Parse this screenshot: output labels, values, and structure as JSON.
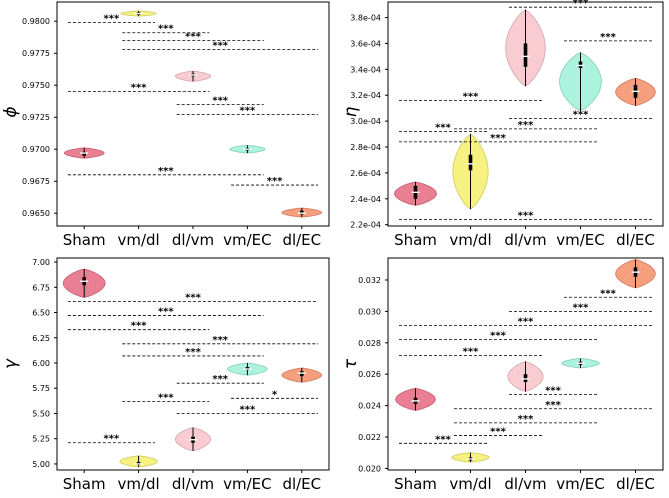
{
  "chart_data": [
    {
      "type": "violin",
      "ylabel": "ϕ",
      "ylim": [
        0.964,
        0.9815
      ],
      "yticks": [
        0.965,
        0.9675,
        0.97,
        0.9725,
        0.975,
        0.9775,
        0.98
      ],
      "ytick_labels": [
        "0.9650",
        "0.9675",
        "0.9700",
        "0.9725",
        "0.9750",
        "0.9775",
        "0.9800"
      ],
      "categories": [
        "Sham",
        "vm/dl",
        "dl/vm",
        "vm/EC",
        "dl/EC"
      ],
      "colors": [
        "#e8788c",
        "#f5f07a",
        "#f9c9cf",
        "#a8f2dc",
        "#f49a78"
      ],
      "violins": [
        {
          "lo": 0.9693,
          "hi": 0.9701,
          "q1": 0.9695,
          "q3": 0.9698,
          "median": 0.9697,
          "w": 0.9
        },
        {
          "lo": 0.9804,
          "hi": 0.9808,
          "q1": 0.9805,
          "q3": 0.9807,
          "median": 0.9806,
          "w": 0.8
        },
        {
          "lo": 0.9753,
          "hi": 0.9761,
          "q1": 0.9757,
          "q3": 0.9759,
          "median": 0.9758,
          "w": 0.8
        },
        {
          "lo": 0.9697,
          "hi": 0.9703,
          "q1": 0.9699,
          "q3": 0.9701,
          "median": 0.97,
          "w": 0.8
        },
        {
          "lo": 0.9647,
          "hi": 0.9654,
          "q1": 0.9649,
          "q3": 0.9652,
          "median": 0.965,
          "w": 0.9
        }
      ],
      "brackets": [
        {
          "from": 0,
          "to": 1,
          "y": 0.9799,
          "label": "***"
        },
        {
          "from": 1,
          "to": 2,
          "y": 0.9791,
          "label": "***"
        },
        {
          "from": 1,
          "to": 3,
          "y": 0.9785,
          "label": "***"
        },
        {
          "from": 1,
          "to": 4,
          "y": 0.9778,
          "label": "***"
        },
        {
          "from": 0,
          "to": 2,
          "y": 0.9745,
          "label": "***"
        },
        {
          "from": 2,
          "to": 3,
          "y": 0.9735,
          "label": "***"
        },
        {
          "from": 2,
          "to": 4,
          "y": 0.9727,
          "label": "***"
        },
        {
          "from": 0,
          "to": 3,
          "y": 0.968,
          "label": "***"
        },
        {
          "from": 3,
          "to": 4,
          "y": 0.9672,
          "label": "***"
        }
      ]
    },
    {
      "type": "violin",
      "ylabel": "η",
      "ylim": [
        0.000219,
        0.000392
      ],
      "yticks": [
        0.00022,
        0.00024,
        0.00026,
        0.00028,
        0.0003,
        0.00032,
        0.00034,
        0.00036,
        0.00038
      ],
      "ytick_labels": [
        "2.2e-04",
        "2.4e-04",
        "2.6e-04",
        "2.8e-04",
        "3.0e-04",
        "3.2e-04",
        "3.4e-04",
        "3.6e-04",
        "3.8e-04"
      ],
      "categories": [
        "Sham",
        "vm/dl",
        "dl/vm",
        "vm/EC",
        "dl/EC"
      ],
      "colors": [
        "#e8788c",
        "#f5f07a",
        "#f9c9cf",
        "#a8f2dc",
        "#f49a78"
      ],
      "violins": [
        {
          "lo": 0.000235,
          "hi": 0.000253,
          "q1": 0.00024,
          "q3": 0.00025,
          "median": 0.000245,
          "w": 0.95
        },
        {
          "lo": 0.000232,
          "hi": 0.00029,
          "q1": 0.000262,
          "q3": 0.000274,
          "median": 0.000267,
          "w": 0.8
        },
        {
          "lo": 0.000327,
          "hi": 0.000386,
          "q1": 0.000342,
          "q3": 0.00036,
          "median": 0.00035,
          "w": 0.9
        },
        {
          "lo": 0.000308,
          "hi": 0.000353,
          "q1": 0.000341,
          "q3": 0.000346,
          "median": 0.000343,
          "w": 0.95
        },
        {
          "lo": 0.000312,
          "hi": 0.000333,
          "q1": 0.000318,
          "q3": 0.000328,
          "median": 0.000323,
          "w": 0.9
        }
      ],
      "brackets": [
        {
          "from": 2,
          "to": 4,
          "y": 0.000388,
          "label": "***"
        },
        {
          "from": 3,
          "to": 4,
          "y": 0.000362,
          "label": "***"
        },
        {
          "from": 0,
          "to": 2,
          "y": 0.000316,
          "label": "***"
        },
        {
          "from": 2,
          "to": 4,
          "y": 0.000302,
          "label": "***"
        },
        {
          "from": 1,
          "to": 3,
          "y": 0.000294,
          "label": "***"
        },
        {
          "from": 0,
          "to": 1,
          "y": 0.000292,
          "label": "***"
        },
        {
          "from": 0,
          "to": 3,
          "y": 0.000284,
          "label": "***"
        },
        {
          "from": 0,
          "to": 4,
          "y": 0.000224,
          "label": "***"
        }
      ]
    },
    {
      "type": "violin",
      "ylabel": "γ",
      "ylim": [
        4.94,
        7.04
      ],
      "yticks": [
        5.0,
        5.25,
        5.5,
        5.75,
        6.0,
        6.25,
        6.5,
        6.75,
        7.0
      ],
      "ytick_labels": [
        "5.00",
        "5.25",
        "5.50",
        "5.75",
        "6.00",
        "6.25",
        "6.50",
        "6.75",
        "7.00"
      ],
      "categories": [
        "Sham",
        "vm/dl",
        "dl/vm",
        "vm/EC",
        "dl/EC"
      ],
      "colors": [
        "#e8788c",
        "#f5f07a",
        "#f9c9cf",
        "#a8f2dc",
        "#f49a78"
      ],
      "violins": [
        {
          "lo": 6.65,
          "hi": 6.93,
          "q1": 6.77,
          "q3": 6.85,
          "median": 6.81,
          "w": 0.95
        },
        {
          "lo": 4.97,
          "hi": 5.08,
          "q1": 4.99,
          "q3": 5.02,
          "median": 5.0,
          "w": 0.85
        },
        {
          "lo": 5.13,
          "hi": 5.36,
          "q1": 5.21,
          "q3": 5.27,
          "median": 5.24,
          "w": 0.8
        },
        {
          "lo": 5.88,
          "hi": 6.0,
          "q1": 5.93,
          "q3": 5.96,
          "median": 5.94,
          "w": 0.9
        },
        {
          "lo": 5.81,
          "hi": 5.95,
          "q1": 5.87,
          "q3": 5.92,
          "median": 5.9,
          "w": 0.9
        }
      ],
      "brackets": [
        {
          "from": 0,
          "to": 4,
          "y": 6.61,
          "label": "***"
        },
        {
          "from": 0,
          "to": 3,
          "y": 6.47,
          "label": "***"
        },
        {
          "from": 0,
          "to": 2,
          "y": 6.33,
          "label": "***"
        },
        {
          "from": 1,
          "to": 4,
          "y": 6.19,
          "label": "***"
        },
        {
          "from": 1,
          "to": 3,
          "y": 6.07,
          "label": "***"
        },
        {
          "from": 2,
          "to": 3,
          "y": 5.8,
          "label": "***"
        },
        {
          "from": 3,
          "to": 4,
          "y": 5.65,
          "label": "*"
        },
        {
          "from": 1,
          "to": 2,
          "y": 5.62,
          "label": "***"
        },
        {
          "from": 2,
          "to": 4,
          "y": 5.5,
          "label": "***"
        },
        {
          "from": 0,
          "to": 1,
          "y": 5.21,
          "label": "***"
        }
      ]
    },
    {
      "type": "violin",
      "ylabel": "τ",
      "ylim": [
        0.0199,
        0.0334
      ],
      "yticks": [
        0.02,
        0.022,
        0.024,
        0.026,
        0.028,
        0.03,
        0.032
      ],
      "ytick_labels": [
        "0.020",
        "0.022",
        "0.024",
        "0.026",
        "0.028",
        "0.030",
        "0.032"
      ],
      "categories": [
        "Sham",
        "vm/dl",
        "dl/vm",
        "vm/EC",
        "dl/EC"
      ],
      "colors": [
        "#e8788c",
        "#f5f07a",
        "#f9c9cf",
        "#a8f2dc",
        "#f49a78"
      ],
      "violins": [
        {
          "lo": 0.0237,
          "hi": 0.0251,
          "q1": 0.0241,
          "q3": 0.0245,
          "median": 0.0243,
          "w": 0.9
        },
        {
          "lo": 0.0204,
          "hi": 0.021,
          "q1": 0.0205,
          "q3": 0.0207,
          "median": 0.0206,
          "w": 0.85
        },
        {
          "lo": 0.0249,
          "hi": 0.0268,
          "q1": 0.0255,
          "q3": 0.026,
          "median": 0.0257,
          "w": 0.8
        },
        {
          "lo": 0.0264,
          "hi": 0.027,
          "q1": 0.0266,
          "q3": 0.0268,
          "median": 0.0267,
          "w": 0.85
        },
        {
          "lo": 0.0315,
          "hi": 0.0333,
          "q1": 0.0322,
          "q3": 0.0328,
          "median": 0.0325,
          "w": 0.9
        }
      ],
      "brackets": [
        {
          "from": 3,
          "to": 4,
          "y": 0.0309,
          "label": "***"
        },
        {
          "from": 2,
          "to": 4,
          "y": 0.03,
          "label": "***"
        },
        {
          "from": 0,
          "to": 4,
          "y": 0.0291,
          "label": "***"
        },
        {
          "from": 0,
          "to": 3,
          "y": 0.0282,
          "label": "***"
        },
        {
          "from": 0,
          "to": 2,
          "y": 0.0272,
          "label": "***"
        },
        {
          "from": 2,
          "to": 3,
          "y": 0.0247,
          "label": "***"
        },
        {
          "from": 1,
          "to": 4,
          "y": 0.0238,
          "label": "***"
        },
        {
          "from": 1,
          "to": 3,
          "y": 0.0229,
          "label": "***"
        },
        {
          "from": 1,
          "to": 2,
          "y": 0.0221,
          "label": "***"
        },
        {
          "from": 0,
          "to": 1,
          "y": 0.0216,
          "label": "***"
        }
      ]
    }
  ]
}
